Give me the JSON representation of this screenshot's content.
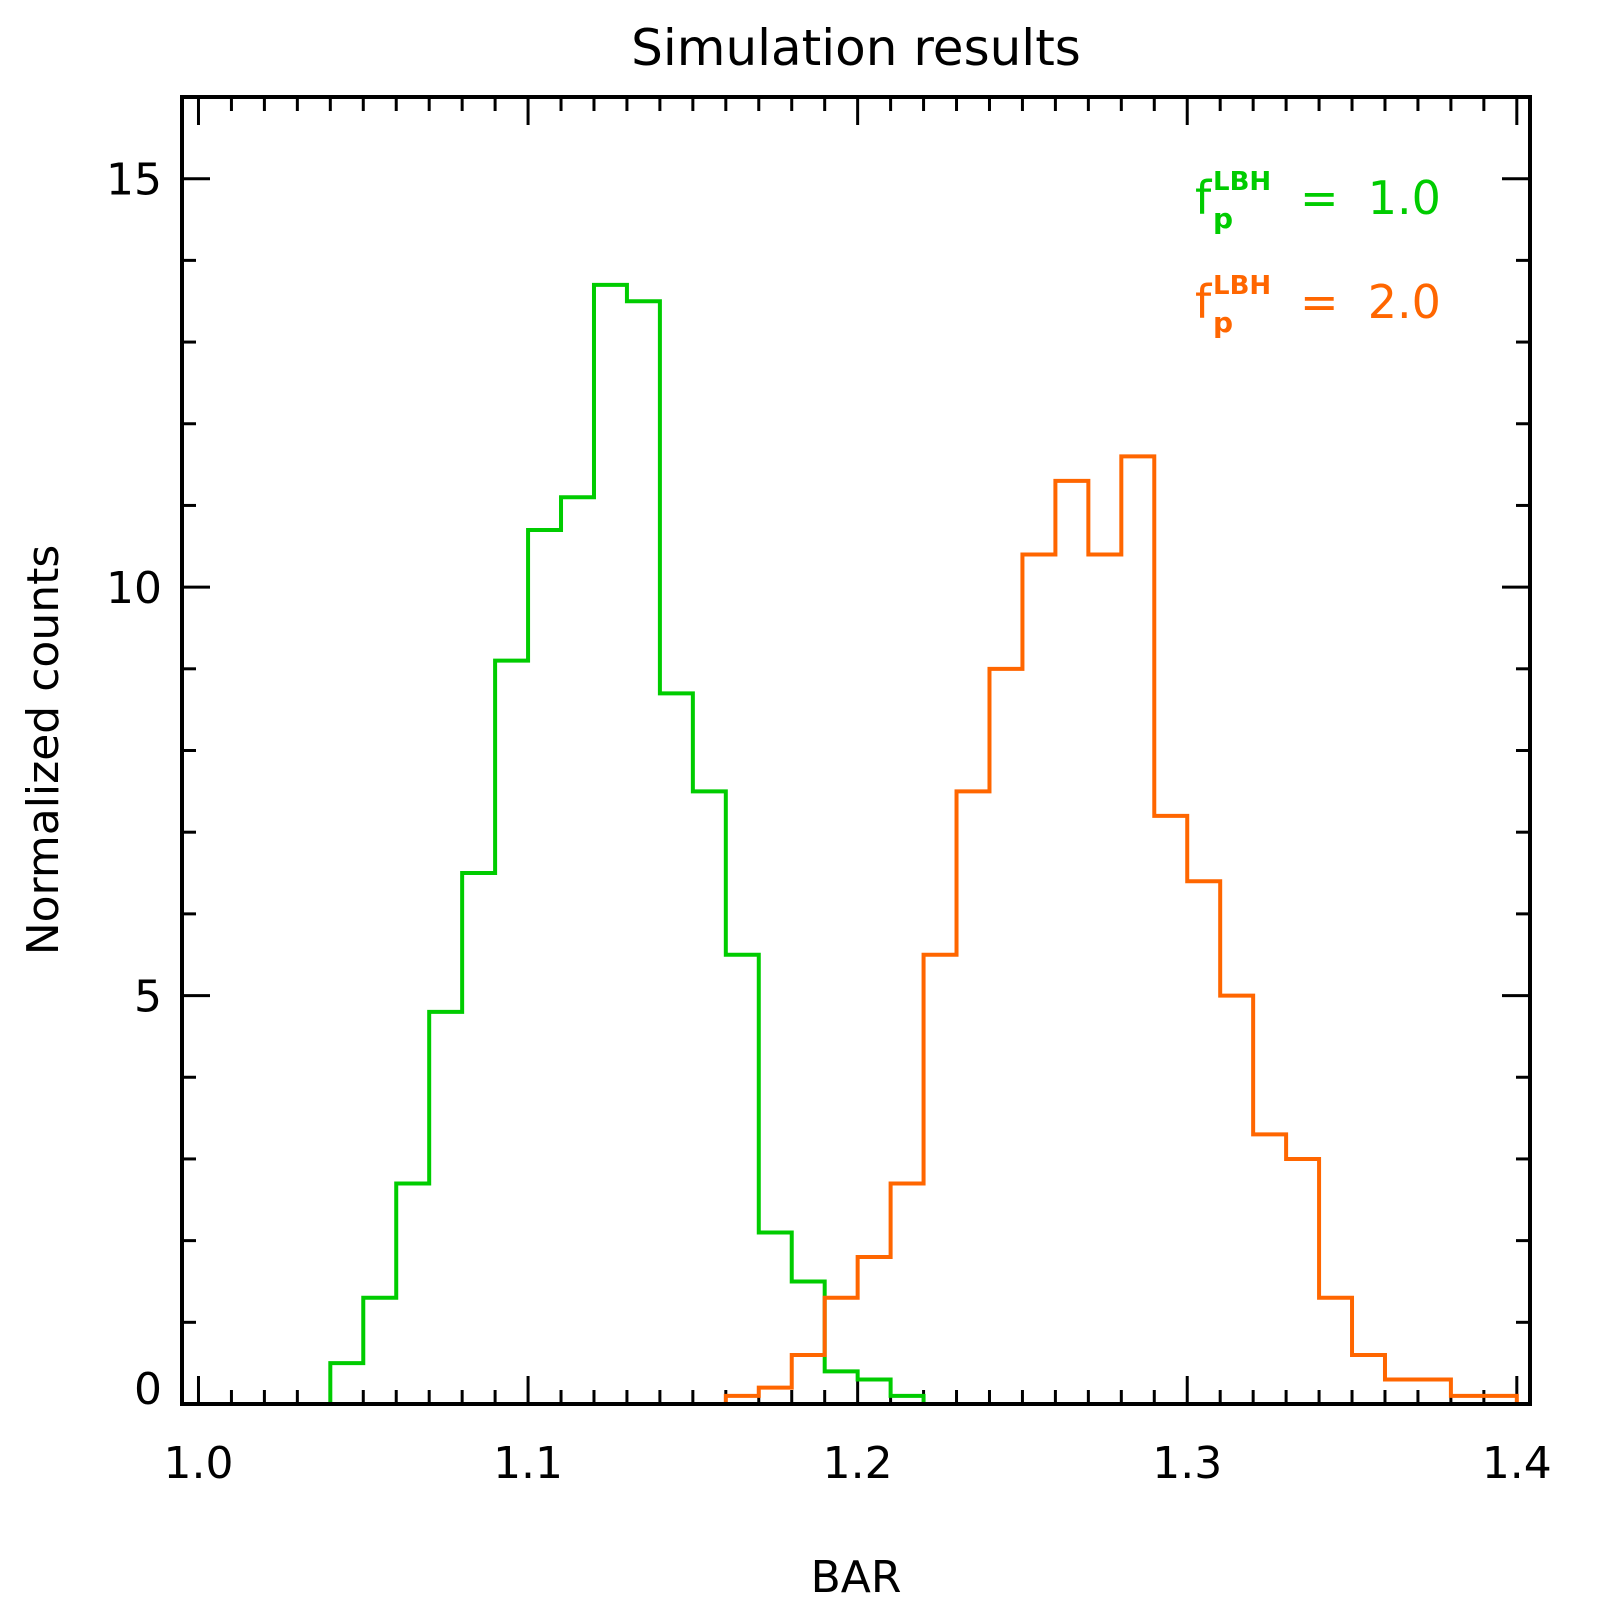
{
  "chart_data": {
    "type": "histogram",
    "title": "Simulation results",
    "xlabel": "BAR",
    "ylabel": "Normalized counts",
    "xlim": [
      0.995,
      1.404
    ],
    "ylim": [
      0,
      16
    ],
    "x_ticks": [
      1.0,
      1.1,
      1.2,
      1.3,
      1.4
    ],
    "x_tick_labels": [
      "1.0",
      "1.1",
      "1.2",
      "1.3",
      "1.4"
    ],
    "y_ticks": [
      0,
      5,
      10,
      15
    ],
    "y_tick_labels": [
      "0",
      "5",
      "10",
      "15"
    ],
    "bin_width": 0.01,
    "legend_position": "top-right",
    "series": [
      {
        "name": "f_p^LBH = 1.0",
        "label_main": "f",
        "label_sub": "p",
        "label_sup": "LBH",
        "label_value": "=  1.0",
        "color": "#00cc00",
        "bin_start": 1.04,
        "values": [
          0.5,
          1.3,
          2.7,
          4.8,
          6.5,
          9.1,
          10.7,
          11.1,
          13.7,
          13.5,
          8.7,
          7.5,
          5.5,
          2.1,
          1.5,
          0.4,
          0.3,
          0.1
        ]
      },
      {
        "name": "f_p^LBH = 2.0",
        "label_main": "f",
        "label_sub": "p",
        "label_sup": "LBH",
        "label_value": "=  2.0",
        "color": "#ff6600",
        "bin_start": 1.16,
        "values": [
          0.1,
          0.2,
          0.6,
          1.3,
          1.8,
          2.7,
          5.5,
          7.5,
          9.0,
          10.4,
          11.3,
          10.4,
          11.6,
          7.2,
          6.4,
          5.0,
          3.3,
          3.0,
          1.3,
          0.6,
          0.3,
          0.3,
          0.1,
          0.1
        ]
      }
    ]
  }
}
